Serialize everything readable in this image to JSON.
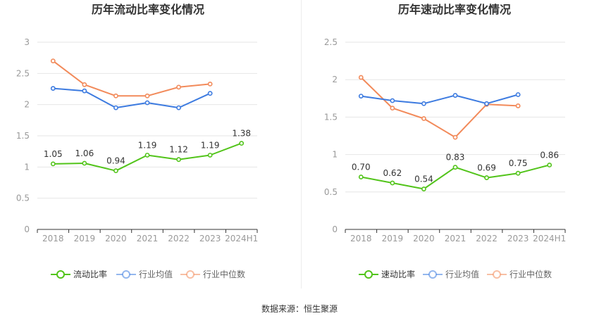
{
  "source_note": "数据来源：恒生聚源",
  "colors": {
    "main": "#52c41a",
    "avg": "#3d7be0",
    "median": "#f28a5a",
    "grid": "#e6e6e6",
    "axis": "#999999",
    "text": "#333333"
  },
  "chart_data": [
    {
      "type": "line",
      "title": "历年流动比率变化情况",
      "categories": [
        "2018",
        "2019",
        "2020",
        "2021",
        "2022",
        "2023",
        "2024H1"
      ],
      "y_ticks": [
        "0",
        "0.5",
        "1",
        "1.5",
        "2",
        "2.5",
        "3"
      ],
      "ylim": [
        0,
        3
      ],
      "grid": true,
      "legend_position": "bottom",
      "series": [
        {
          "name": "流动比率",
          "values": [
            1.05,
            1.06,
            0.94,
            1.19,
            1.12,
            1.19,
            1.38
          ],
          "labels": [
            "1.05",
            "1.06",
            "0.94",
            "1.19",
            "1.12",
            "1.19",
            "1.38"
          ]
        },
        {
          "name": "行业均值",
          "values": [
            2.26,
            2.22,
            1.95,
            2.03,
            1.95,
            2.18,
            null
          ]
        },
        {
          "name": "行业中位数",
          "values": [
            2.7,
            2.32,
            2.14,
            2.14,
            2.28,
            2.33,
            null
          ]
        }
      ]
    },
    {
      "type": "line",
      "title": "历年速动比率变化情况",
      "categories": [
        "2018",
        "2019",
        "2020",
        "2021",
        "2022",
        "2023",
        "2024H1"
      ],
      "y_ticks": [
        "0",
        "0.5",
        "1",
        "1.5",
        "2",
        "2.5"
      ],
      "ylim": [
        0,
        2.5
      ],
      "grid": true,
      "legend_position": "bottom",
      "series": [
        {
          "name": "速动比率",
          "values": [
            0.7,
            0.62,
            0.54,
            0.83,
            0.69,
            0.75,
            0.86
          ],
          "labels": [
            "0.70",
            "0.62",
            "0.54",
            "0.83",
            "0.69",
            "0.75",
            "0.86"
          ]
        },
        {
          "name": "行业均值",
          "values": [
            1.78,
            1.72,
            1.68,
            1.79,
            1.68,
            1.8,
            null
          ]
        },
        {
          "name": "行业中位数",
          "values": [
            2.03,
            1.62,
            1.48,
            1.23,
            1.67,
            1.65,
            null
          ]
        }
      ]
    }
  ]
}
